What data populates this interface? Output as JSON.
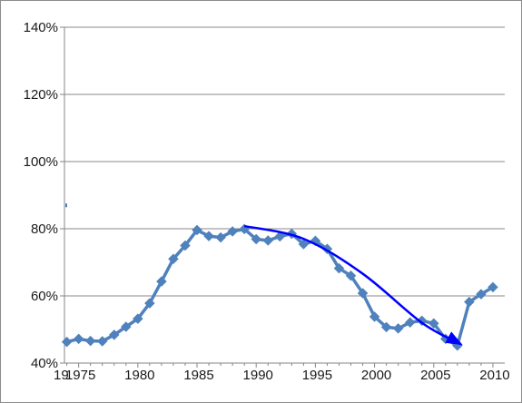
{
  "chart_data": {
    "type": "line",
    "title": "",
    "xlabel": "",
    "ylabel": "",
    "xlim": [
      1973.8,
      2011
    ],
    "ylim": [
      40,
      140
    ],
    "y_ticks": [
      40,
      60,
      80,
      100,
      120,
      140
    ],
    "y_tick_labels": [
      "40%",
      "60%",
      "80%",
      "100%",
      "120%",
      "140%"
    ],
    "x_ticks": [
      1975,
      1980,
      1985,
      1990,
      1995,
      2000,
      2005,
      2010
    ],
    "x_tick_labels": [
      "1975",
      "1980",
      "1985",
      "1990",
      "1995",
      "2000",
      "2005",
      "2010"
    ],
    "x_overflow_label": "19",
    "grid": "horizontal",
    "legend": "none",
    "series": [
      {
        "color": "#4f81bd",
        "marker": "diamond",
        "x": [
          1974,
          1975,
          1976,
          1977,
          1978,
          1979,
          1980,
          1981,
          1982,
          1983,
          1984,
          1985,
          1986,
          1987,
          1988,
          1989,
          1990,
          1991,
          1992,
          1993,
          1994,
          1995,
          1996,
          1997,
          1998,
          1999,
          2000,
          2001,
          2002,
          2003,
          2004,
          2005,
          2006,
          2007,
          2008,
          2009,
          2010
        ],
        "y": [
          46.3,
          47.2,
          46.6,
          46.5,
          48.4,
          50.8,
          53.2,
          57.8,
          64.3,
          71.0,
          75.0,
          79.6,
          77.8,
          77.4,
          79.2,
          79.9,
          76.9,
          76.5,
          77.7,
          78.5,
          75.4,
          76.4,
          74.0,
          68.2,
          66.0,
          60.8,
          53.8,
          50.7,
          50.3,
          52.1,
          52.6,
          51.8,
          47.2,
          45.2,
          58.2,
          60.5,
          62.6
        ]
      }
    ],
    "trend_arrow": {
      "color": "#0000ff",
      "x": [
        1989,
        1994,
        1999,
        2004,
        2007.3
      ],
      "y": [
        80.8,
        77.0,
        66.6,
        52.0,
        45.6
      ]
    }
  }
}
